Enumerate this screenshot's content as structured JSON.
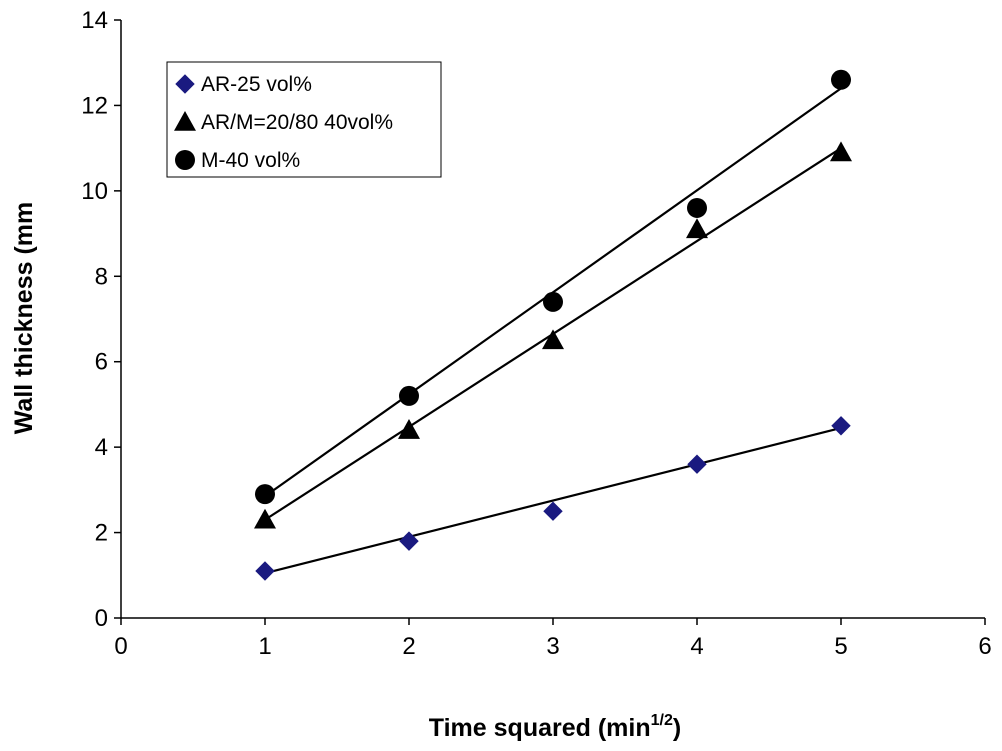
{
  "chart_data": {
    "type": "scatter",
    "title": "",
    "xlabel": {
      "main": "Time squared (min",
      "sup": "1/2",
      "tail": ")"
    },
    "ylabel": "Wall thickness (mm",
    "xlim": [
      0,
      6
    ],
    "ylim": [
      0,
      14
    ],
    "xticks": [
      "0",
      "1",
      "2",
      "3",
      "4",
      "5",
      "6"
    ],
    "yticks": [
      "0",
      "2",
      "4",
      "6",
      "8",
      "10",
      "12",
      "14"
    ],
    "grid": false,
    "legend_position": "top-left",
    "series": [
      {
        "name": "AR-25 vol%",
        "marker": "diamond",
        "color": "#1a1a80",
        "x": [
          1,
          2,
          3,
          4,
          5
        ],
        "y": [
          1.1,
          1.8,
          2.5,
          3.6,
          4.5
        ],
        "trendline": [
          [
            1,
            1.05
          ],
          [
            5,
            4.45
          ]
        ]
      },
      {
        "name": "AR/M=20/80 40vol%",
        "marker": "triangle",
        "color": "#000000",
        "x": [
          1,
          2,
          3,
          4,
          5
        ],
        "y": [
          2.3,
          4.4,
          6.5,
          9.1,
          10.9
        ],
        "trendline": [
          [
            1,
            2.3
          ],
          [
            5,
            11.0
          ]
        ]
      },
      {
        "name": "M-40 vol%",
        "marker": "circle",
        "color": "#000000",
        "x": [
          1,
          2,
          3,
          4,
          5
        ],
        "y": [
          2.9,
          5.2,
          7.4,
          9.6,
          12.6
        ],
        "trendline": [
          [
            1,
            2.85
          ],
          [
            5,
            12.4
          ]
        ]
      }
    ]
  }
}
